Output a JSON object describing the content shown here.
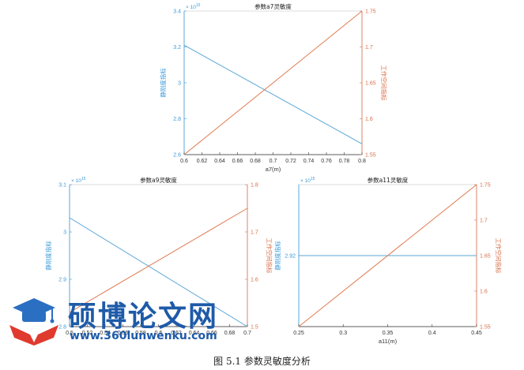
{
  "chart_data": [
    {
      "type": "line",
      "title": "参数a7灵敏度",
      "xlabel": "a7(m)",
      "ylabel_left": "静刚度指标",
      "ylabel_right": "工作空间指标",
      "exponent_label": "× 10",
      "exponent_power": "15",
      "xlim": [
        0.6,
        0.8
      ],
      "ylim_left": [
        2.6,
        3.4
      ],
      "ylim_right": [
        1.55,
        1.75
      ],
      "x_ticks": [
        0.6,
        0.62,
        0.64,
        0.66,
        0.68,
        0.7,
        0.72,
        0.74,
        0.76,
        0.78,
        0.8
      ],
      "x_tick_labels": [
        "0.6",
        "0.62",
        "0.64",
        "0.66",
        "0.68",
        "0.7",
        "0.72",
        "0.74",
        "0.76",
        "0.78",
        "0.8"
      ],
      "y_left_ticks": [
        2.6,
        2.8,
        3,
        3.2,
        3.4
      ],
      "y_left_tick_labels": [
        "2.6",
        "2.8",
        "3",
        "3.2",
        "3.4"
      ],
      "y_right_ticks": [
        1.55,
        1.6,
        1.65,
        1.7,
        1.75
      ],
      "y_right_tick_labels": [
        "1.55",
        "1.6",
        "1.65",
        "1.7",
        "1.75"
      ],
      "series": [
        {
          "axis": "left",
          "x": [
            0.6,
            0.8
          ],
          "y": [
            3.21,
            2.66
          ]
        },
        {
          "axis": "right",
          "x": [
            0.6,
            0.8
          ],
          "y": [
            1.55,
            1.75
          ]
        }
      ]
    },
    {
      "type": "line",
      "title": "参数a9灵敏度",
      "xlabel": "",
      "ylabel_left": "静刚度指标",
      "ylabel_right": "工作空间指标",
      "exponent_label": "× 10",
      "exponent_power": "15",
      "xlim": [
        0.5,
        0.7
      ],
      "ylim_left": [
        2.8,
        3.1
      ],
      "ylim_right": [
        1.5,
        1.8
      ],
      "x_ticks": [
        0.5,
        0.52,
        0.54,
        0.56,
        0.58,
        0.6,
        0.62,
        0.64,
        0.66,
        0.68,
        0.7
      ],
      "x_tick_labels": [
        "0.5",
        "0.52",
        "0.54",
        "0.56",
        "0.58",
        "0.6",
        "0.62",
        "0.64",
        "0.66",
        "0.68",
        "0.7"
      ],
      "y_left_ticks": [
        2.8,
        2.9,
        3,
        3.1
      ],
      "y_left_tick_labels": [
        "2.8",
        "2.9",
        "3",
        "3.1"
      ],
      "y_right_ticks": [
        1.5,
        1.6,
        1.7,
        1.8
      ],
      "y_right_tick_labels": [
        "1.5",
        "1.6",
        "1.7",
        "1.8"
      ],
      "series": [
        {
          "axis": "left",
          "x": [
            0.5,
            0.7
          ],
          "y": [
            3.03,
            2.8
          ]
        },
        {
          "axis": "right",
          "x": [
            0.5,
            0.7
          ],
          "y": [
            1.53,
            1.75
          ]
        }
      ]
    },
    {
      "type": "line",
      "title": "参数a11灵敏度",
      "xlabel": "a11(m)",
      "ylabel_left": "静刚度指标",
      "ylabel_right": "工作空间指标",
      "exponent_label": "× 10",
      "exponent_power": "15",
      "xlim": [
        0.25,
        0.45
      ],
      "ylim_left": [
        2.9,
        2.94
      ],
      "ylim_right": [
        1.55,
        1.75
      ],
      "x_ticks": [
        0.25,
        0.3,
        0.35,
        0.4,
        0.45
      ],
      "x_tick_labels": [
        "0.25",
        "0.3",
        "0.35",
        "0.4",
        "0.45"
      ],
      "y_left_ticks": [
        2.92
      ],
      "y_left_tick_labels": [
        "2.92"
      ],
      "y_right_ticks": [
        1.55,
        1.6,
        1.65,
        1.7,
        1.75
      ],
      "y_right_tick_labels": [
        "1.55",
        "1.6",
        "1.65",
        "1.7",
        "1.75"
      ],
      "series": [
        {
          "axis": "left",
          "x": [
            0.25,
            0.45
          ],
          "y": [
            2.92,
            2.92
          ]
        },
        {
          "axis": "right",
          "x": [
            0.25,
            0.45
          ],
          "y": [
            1.55,
            1.75
          ]
        }
      ]
    }
  ],
  "colors": {
    "left_series": "#5aa6d6",
    "right_series": "#e07b53",
    "axis": "#333333",
    "left_label": "#3a9ad9",
    "right_label": "#d9704a"
  },
  "watermark": {
    "title": "硕博论文网",
    "url": "www.360lunwenku.com",
    "logo_icon": "graduation-cap-icon"
  },
  "caption": "图 5.1 参数灵敏度分析"
}
